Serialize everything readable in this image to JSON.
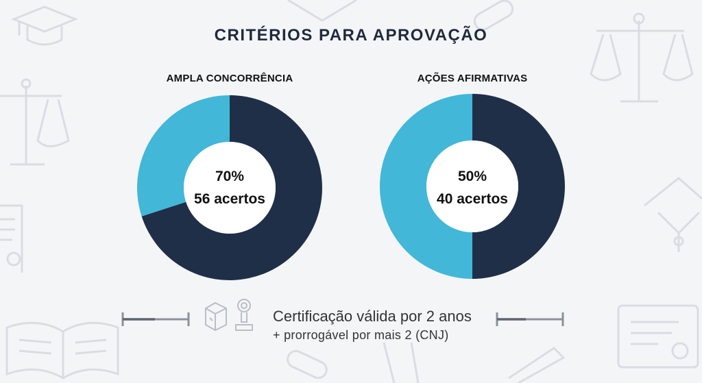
{
  "title": "CRITÉRIOS PARA APROVAÇÃO",
  "colors": {
    "dark": "#1f2f48",
    "light": "#42b7d8",
    "hole": "#ffffff"
  },
  "chart_data": [
    {
      "type": "pie",
      "title": "AMPLA CONCORRÊNCIA",
      "slices": [
        {
          "label": "70%",
          "value": 70,
          "color": "#1f2f48"
        },
        {
          "label": "",
          "value": 30,
          "color": "#42b7d8"
        }
      ],
      "center_line1": "70%",
      "center_line2": "56 acertos"
    },
    {
      "type": "pie",
      "title": "AÇÕES AFIRMATIVAS",
      "slices": [
        {
          "label": "50%",
          "value": 50,
          "color": "#1f2f48"
        },
        {
          "label": "",
          "value": 50,
          "color": "#42b7d8"
        }
      ],
      "center_line1": "50%",
      "center_line2": "40 acertos"
    }
  ],
  "footer": {
    "line1": "Certificação válida por 2 anos",
    "line2": "+ prorrogável por mais 2 (CNJ)",
    "icons": [
      "box-icon",
      "certificate-stamp-icon"
    ]
  },
  "background_icons": [
    "graduation-cap-icon",
    "scales-of-justice-icon",
    "diploma-icon",
    "open-book-icon",
    "pencil-icon"
  ]
}
